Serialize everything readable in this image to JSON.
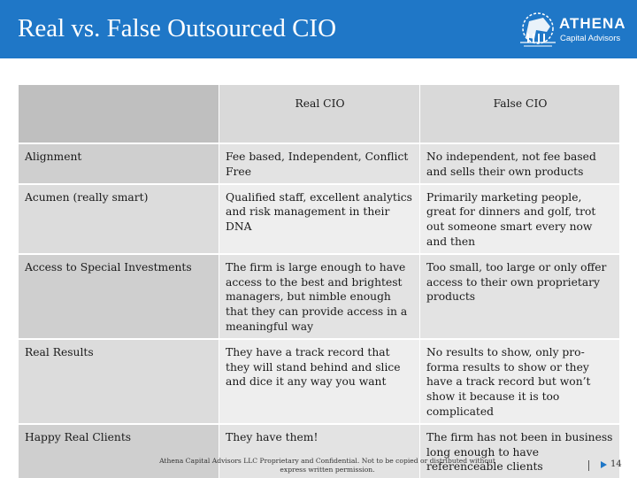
{
  "header": {
    "title": "Real vs. False Outsourced CIO",
    "logo_name": "ATHENA",
    "logo_sub": "Capital Advisors"
  },
  "table": {
    "columns": [
      "",
      "Real CIO",
      "False CIO"
    ],
    "rows": [
      {
        "label": "Alignment",
        "real": "Fee based, Independent, Conflict Free",
        "false": "No independent, not fee based and sells their own products"
      },
      {
        "label": "Acumen (really smart)",
        "real": "Qualified staff, excellent analytics and risk management in their DNA",
        "false": "Primarily marketing people, great for dinners and golf, trot out someone smart every now and then"
      },
      {
        "label": "Access to Special Investments",
        "real": "The firm is large enough to have access to the best and brightest managers, but nimble enough that they can provide access in a meaningful way",
        "false": "Too small, too large or only offer access to their own proprietary products"
      },
      {
        "label": "Real Results",
        "real": "They have a track record that they will stand behind and slice and dice it any way you want",
        "false": "No results to show, only pro-forma results to show or they have a track record but won’t show it because it is too complicated"
      },
      {
        "label": "Happy Real Clients",
        "real": "They have them!",
        "false": "The firm has not been in business long enough to have referenceable clients"
      }
    ]
  },
  "footer": {
    "confidential": "Athena Capital Advisors LLC Proprietary and Confidential. Not to be copied or distributed without express written permission.",
    "page_number": "14"
  },
  "colors": {
    "header_bg": "#1f77c7",
    "header_text": "#ffffff"
  }
}
